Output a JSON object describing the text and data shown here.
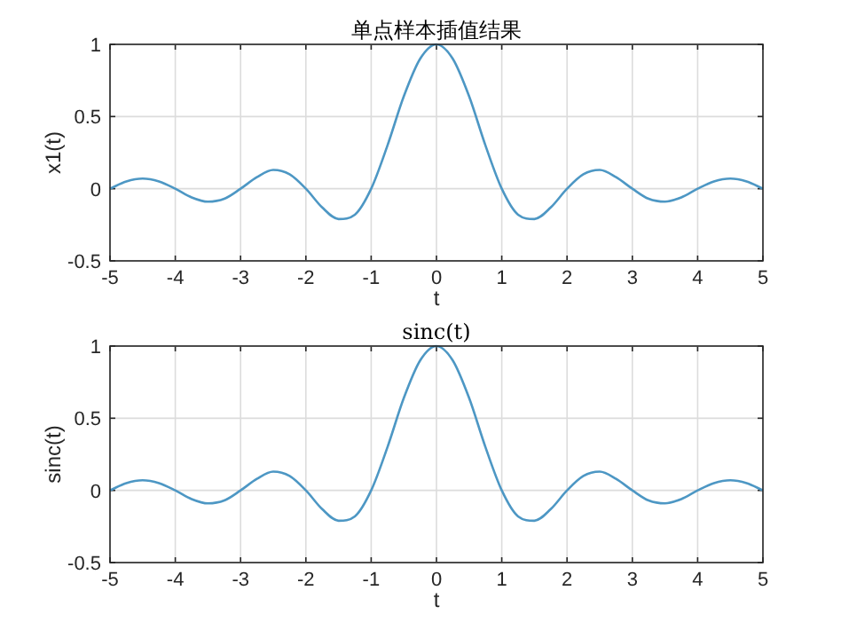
{
  "chart_data": [
    {
      "type": "line",
      "title": "单点样本插值结果",
      "xlabel": "t",
      "ylabel": "x1(t)",
      "xlim": [
        -5,
        5
      ],
      "ylim": [
        -0.5,
        1
      ],
      "xticks": [
        -5,
        -4,
        -3,
        -2,
        -1,
        0,
        1,
        2,
        3,
        4,
        5
      ],
      "yticks": [
        -0.5,
        0,
        0.5,
        1
      ],
      "grid": true,
      "x": [
        -5,
        -4.75,
        -4.5,
        -4.25,
        -4,
        -3.75,
        -3.5,
        -3.25,
        -3,
        -2.75,
        -2.5,
        -2.25,
        -2,
        -1.75,
        -1.5,
        -1.25,
        -1,
        -0.75,
        -0.5,
        -0.25,
        0,
        0.25,
        0.5,
        0.75,
        1,
        1.25,
        1.5,
        1.75,
        2,
        2.25,
        2.5,
        2.75,
        3,
        3.25,
        3.5,
        3.75,
        4,
        4.25,
        4.5,
        4.75,
        5
      ],
      "series": [
        {
          "color": "#4d97c4",
          "values": [
            0,
            0.05,
            0.07,
            0.05,
            0,
            -0.06,
            -0.09,
            -0.07,
            0,
            0.08,
            0.13,
            0.1,
            0,
            -0.13,
            -0.21,
            -0.18,
            0,
            0.3,
            0.64,
            0.9,
            1,
            0.9,
            0.64,
            0.3,
            0,
            -0.18,
            -0.21,
            -0.13,
            0,
            0.1,
            0.13,
            0.08,
            0,
            -0.07,
            -0.09,
            -0.06,
            0,
            0.05,
            0.07,
            0.05,
            0
          ]
        }
      ]
    },
    {
      "type": "line",
      "title": "sinc(t)",
      "xlabel": "t",
      "ylabel": "sinc(t)",
      "xlim": [
        -5,
        5
      ],
      "ylim": [
        -0.5,
        1
      ],
      "xticks": [
        -5,
        -4,
        -3,
        -2,
        -1,
        0,
        1,
        2,
        3,
        4,
        5
      ],
      "yticks": [
        -0.5,
        0,
        0.5,
        1
      ],
      "grid": true,
      "x": [
        -5,
        -4.75,
        -4.5,
        -4.25,
        -4,
        -3.75,
        -3.5,
        -3.25,
        -3,
        -2.75,
        -2.5,
        -2.25,
        -2,
        -1.75,
        -1.5,
        -1.25,
        -1,
        -0.75,
        -0.5,
        -0.25,
        0,
        0.25,
        0.5,
        0.75,
        1,
        1.25,
        1.5,
        1.75,
        2,
        2.25,
        2.5,
        2.75,
        3,
        3.25,
        3.5,
        3.75,
        4,
        4.25,
        4.5,
        4.75,
        5
      ],
      "series": [
        {
          "color": "#4d97c4",
          "values": [
            0,
            0.05,
            0.07,
            0.05,
            0,
            -0.06,
            -0.09,
            -0.07,
            0,
            0.08,
            0.13,
            0.1,
            0,
            -0.13,
            -0.21,
            -0.18,
            0,
            0.3,
            0.64,
            0.9,
            1,
            0.9,
            0.64,
            0.3,
            0,
            -0.18,
            -0.21,
            -0.13,
            0,
            0.1,
            0.13,
            0.08,
            0,
            -0.07,
            -0.09,
            -0.06,
            0,
            0.05,
            0.07,
            0.05,
            0
          ]
        }
      ]
    }
  ]
}
